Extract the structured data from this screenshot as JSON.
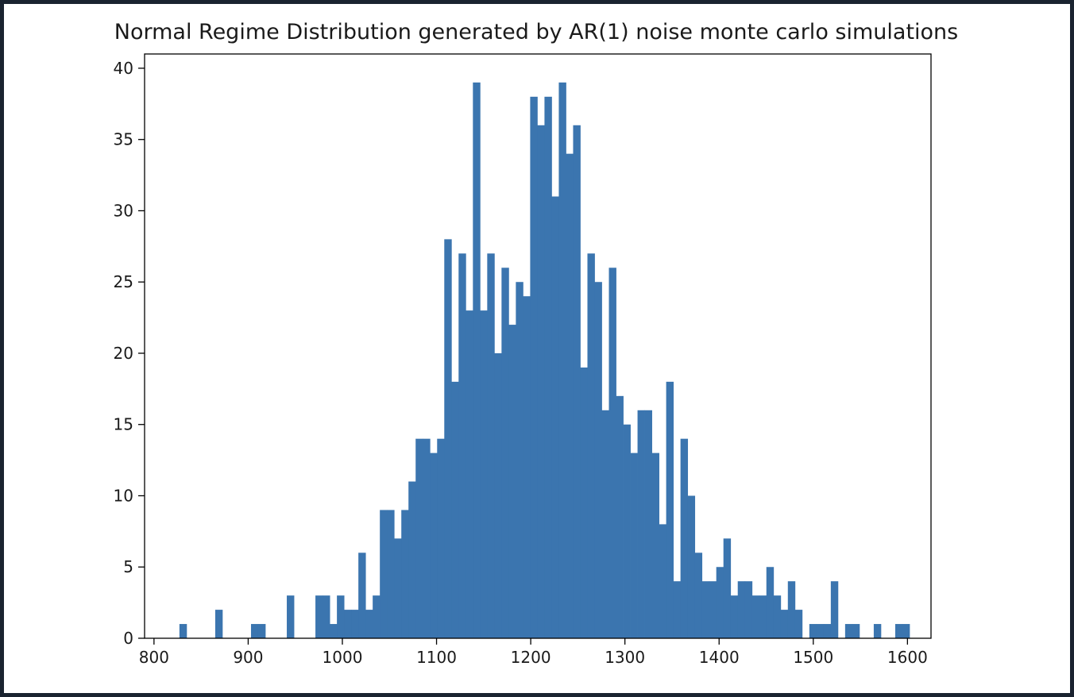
{
  "chart_data": {
    "type": "bar",
    "title": "Normal Regime Distribution generated by AR(1) noise monte carlo simulations",
    "xlabel": "",
    "ylabel": "",
    "xlim": [
      790,
      1625
    ],
    "ylim": [
      0,
      41
    ],
    "x_ticks": [
      800,
      900,
      1000,
      1100,
      1200,
      1300,
      1400,
      1500,
      1600
    ],
    "y_ticks": [
      0,
      5,
      10,
      15,
      20,
      25,
      30,
      35,
      40
    ],
    "bar_color": "#3b75af",
    "grid": false,
    "legend": "none",
    "bin_start": 827,
    "bin_width": 7.6,
    "counts": [
      1,
      0,
      0,
      0,
      0,
      2,
      0,
      0,
      0,
      0,
      1,
      1,
      0,
      0,
      0,
      3,
      0,
      0,
      0,
      3,
      3,
      1,
      3,
      2,
      2,
      6,
      2,
      3,
      9,
      9,
      7,
      9,
      11,
      14,
      14,
      13,
      14,
      28,
      18,
      27,
      23,
      39,
      23,
      27,
      20,
      26,
      22,
      25,
      24,
      38,
      36,
      38,
      31,
      39,
      34,
      36,
      19,
      27,
      25,
      16,
      26,
      17,
      15,
      13,
      16,
      16,
      13,
      8,
      18,
      4,
      14,
      10,
      6,
      4,
      4,
      5,
      7,
      3,
      4,
      4,
      3,
      3,
      5,
      3,
      2,
      4,
      2,
      0,
      1,
      1,
      1,
      4,
      0,
      1,
      1,
      0,
      0,
      1,
      0,
      0,
      1,
      1
    ]
  }
}
